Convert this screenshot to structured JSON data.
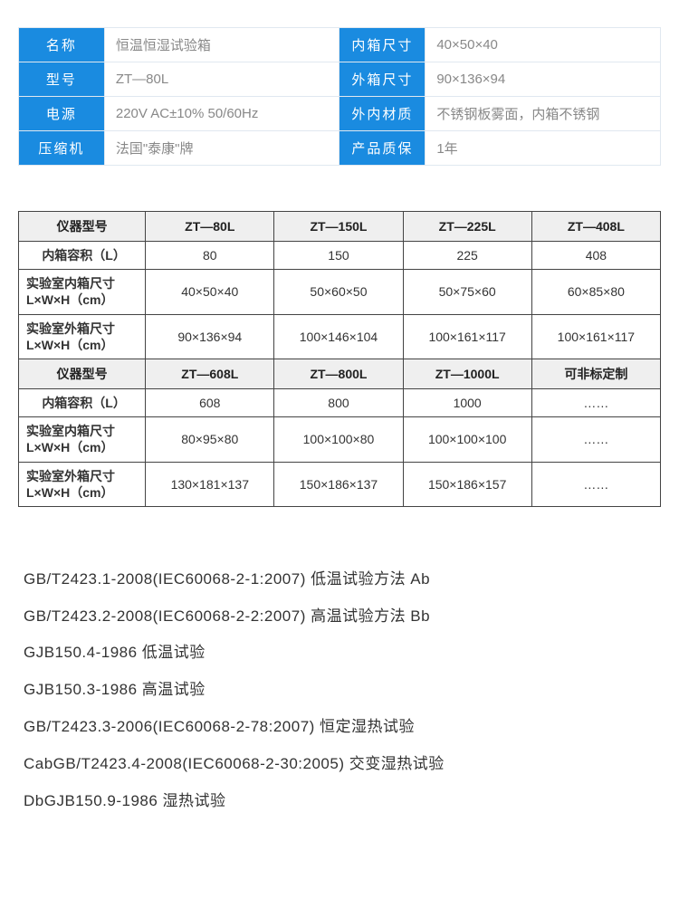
{
  "specTable": {
    "rows": [
      {
        "l1": "名称",
        "v1": "恒温恒湿试验箱",
        "l2": "内箱尺寸",
        "v2": "40×50×40"
      },
      {
        "l1": "型号",
        "v1": "ZT—80L",
        "l2": "外箱尺寸",
        "v2": "90×136×94"
      },
      {
        "l1": "电源",
        "v1": "220V AC±10% 50/60Hz",
        "l2": "外内材质",
        "v2": "不锈钢板雾面，内箱不锈钢"
      },
      {
        "l1": "压缩机",
        "v1": "法国\"泰康\"牌",
        "l2": "产品质保",
        "v2": "1年"
      }
    ],
    "label_bg": "#1a8be0",
    "label_color": "#ffffff",
    "value_color": "#888888",
    "border_color": "#e0e8f0",
    "fontsize": 15
  },
  "modelTable": {
    "block1": {
      "header": [
        "仪器型号",
        "ZT—80L",
        "ZT—150L",
        "ZT—225L",
        "ZT—408L"
      ],
      "rows": [
        {
          "h": "内箱容积（L）",
          "cells": [
            "80",
            "150",
            "225",
            "408"
          ],
          "single": true
        },
        {
          "h": "实验室内箱尺寸\nL×W×H（cm）",
          "cells": [
            "40×50×40",
            "50×60×50",
            "50×75×60",
            "60×85×80"
          ],
          "single": false
        },
        {
          "h": "实验室外箱尺寸\nL×W×H（cm）",
          "cells": [
            "90×136×94",
            "100×146×104",
            "100×161×117",
            "100×161×117"
          ],
          "single": false
        }
      ]
    },
    "block2": {
      "header": [
        "仪器型号",
        "ZT—608L",
        "ZT—800L",
        "ZT—1000L",
        "可非标定制"
      ],
      "rows": [
        {
          "h": "内箱容积（L）",
          "cells": [
            "608",
            "800",
            "1000",
            "……"
          ],
          "single": true
        },
        {
          "h": "实验室内箱尺寸\nL×W×H（cm）",
          "cells": [
            "80×95×80",
            "100×100×80",
            "100×100×100",
            "……"
          ],
          "single": false
        },
        {
          "h": "实验室外箱尺寸\nL×W×H（cm）",
          "cells": [
            "130×181×137",
            "150×186×137",
            "150×186×157",
            "……"
          ],
          "single": false
        }
      ]
    },
    "header_bg": "#efefef",
    "border_color": "#444444",
    "fontsize": 14
  },
  "standards": {
    "lines": [
      "GB/T2423.1-2008(IEC60068-2-1:2007) 低温试验方法 Ab",
      "GB/T2423.2-2008(IEC60068-2-2:2007) 高温试验方法 Bb",
      "GJB150.4-1986   低温试验",
      "GJB150.3-1986   高温试验",
      "GB/T2423.3-2006(IEC60068-2-78:2007)  恒定湿热试验",
      "CabGB/T2423.4-2008(IEC60068-2-30:2005) 交变湿热试验",
      "DbGJB150.9-1986   湿热试验"
    ],
    "fontsize": 17,
    "color": "#333333"
  }
}
